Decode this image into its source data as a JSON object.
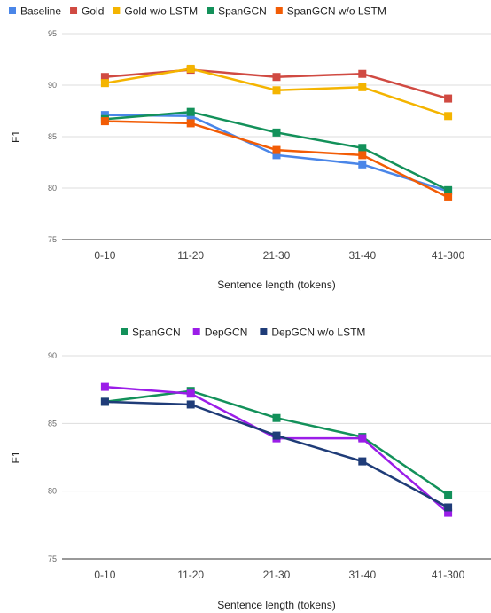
{
  "chart_data": [
    {
      "type": "line",
      "title": "",
      "xlabel": "Sentence length (tokens)",
      "ylabel": "F1",
      "ylim": [
        75,
        95
      ],
      "yticks": [
        75,
        80,
        85,
        90,
        95
      ],
      "grid": true,
      "legend_position": "top",
      "categories": [
        "0-10",
        "11-20",
        "21-30",
        "31-40",
        "41-300"
      ],
      "series": [
        {
          "name": "Baseline",
          "color": "#4a86e8",
          "values": [
            87.1,
            87.0,
            83.2,
            82.3,
            79.7
          ]
        },
        {
          "name": "Gold",
          "color": "#d04a42",
          "values": [
            90.8,
            91.5,
            90.8,
            91.1,
            88.7
          ]
        },
        {
          "name": "Gold w/o LSTM",
          "color": "#f4b400",
          "values": [
            90.2,
            91.6,
            89.5,
            89.8,
            87.0
          ]
        },
        {
          "name": "SpanGCN",
          "color": "#13915a",
          "values": [
            86.7,
            87.4,
            85.4,
            83.9,
            79.8
          ]
        },
        {
          "name": "SpanGCN w/o LSTM",
          "color": "#f25c05",
          "values": [
            86.5,
            86.3,
            83.7,
            83.2,
            79.1
          ]
        }
      ]
    },
    {
      "type": "line",
      "title": "",
      "xlabel": "Sentence length (tokens)",
      "ylabel": "F1",
      "ylim": [
        75,
        90
      ],
      "yticks": [
        75,
        80,
        85,
        90
      ],
      "grid": true,
      "legend_position": "top",
      "categories": [
        "0-10",
        "11-20",
        "21-30",
        "31-40",
        "41-300"
      ],
      "series": [
        {
          "name": "SpanGCN",
          "color": "#13915a",
          "values": [
            86.6,
            87.4,
            85.4,
            84.0,
            79.7
          ]
        },
        {
          "name": "DepGCN",
          "color": "#9b1de8",
          "values": [
            87.7,
            87.2,
            83.9,
            83.9,
            78.4
          ]
        },
        {
          "name": "DepGCN w/o LSTM",
          "color": "#1f3c78",
          "values": [
            86.6,
            86.4,
            84.1,
            82.2,
            78.8
          ]
        }
      ]
    }
  ]
}
